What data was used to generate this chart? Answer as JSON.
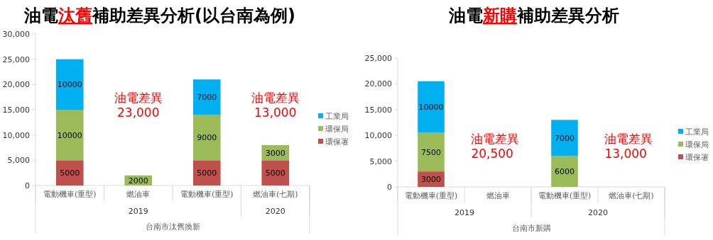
{
  "chart_data": [
    {
      "type": "bar",
      "stacked": true,
      "title": "油電**汰舊**補助差異分析(以台南為例)",
      "xlabel": "台南市汰舊換新",
      "categories": [
        "電動機車(重型)",
        "燃油車",
        "電動機車(重型)",
        "燃油車(七期)"
      ],
      "series": [
        {
          "name": "環保署",
          "color": "#c0504d",
          "values": [
            5000,
            null,
            5000,
            5000
          ]
        },
        {
          "name": "環保局",
          "color": "#9bbb59",
          "values": [
            10000,
            2000,
            9000,
            3000
          ]
        },
        {
          "name": "工業局",
          "color": "#00b0f0",
          "values": [
            10000,
            null,
            7000,
            null
          ]
        }
      ],
      "ylim": [
        0,
        30000
      ],
      "yticks": [
        0,
        {
          "value": 5000,
          "label": "5,000"
        },
        {
          "value": 10000,
          "label": "10,000"
        },
        {
          "value": 15000,
          "label": "15,000"
        },
        {
          "value": 20000,
          "label": "20,000"
        },
        {
          "value": 25000,
          "label": "25,000"
        },
        {
          "value": 30000,
          "label": "30,000"
        }
      ],
      "data_labels": true,
      "legend": "right",
      "annotations": [
        "2019",
        "2020",
        "油電差異\n23,000",
        "油電差異\n13,000"
      ]
    },
    {
      "type": "bar",
      "stacked": true,
      "title": "油電**新購**補助差異分析",
      "xlabel": "台南市新購",
      "categories": [
        "電動機車(重型)",
        "燃油車",
        "電動機車(重型)",
        "燃油車(七期)"
      ],
      "series": [
        {
          "name": "環保署",
          "color": "#c0504d",
          "values": [
            3000,
            null,
            null,
            null
          ]
        },
        {
          "name": "環保局",
          "color": "#9bbb59",
          "values": [
            7500,
            null,
            6000,
            null
          ]
        },
        {
          "name": "工業局",
          "color": "#00b0f0",
          "values": [
            10000,
            null,
            7000,
            null
          ]
        }
      ],
      "ylim": [
        0,
        25000
      ],
      "yticks": [
        0,
        {
          "value": 5000,
          "label": "5,000"
        },
        {
          "value": 10000,
          "label": "10,000"
        },
        {
          "value": 15000,
          "label": "15,000"
        },
        {
          "value": 20000,
          "label": "20,000"
        },
        {
          "value": 25000,
          "label": "25,000"
        }
      ],
      "data_labels": true,
      "legend": "right",
      "annotations": [
        "2019",
        "2020",
        "油電差異\n20,500",
        "油電差異\n13,000"
      ]
    }
  ]
}
